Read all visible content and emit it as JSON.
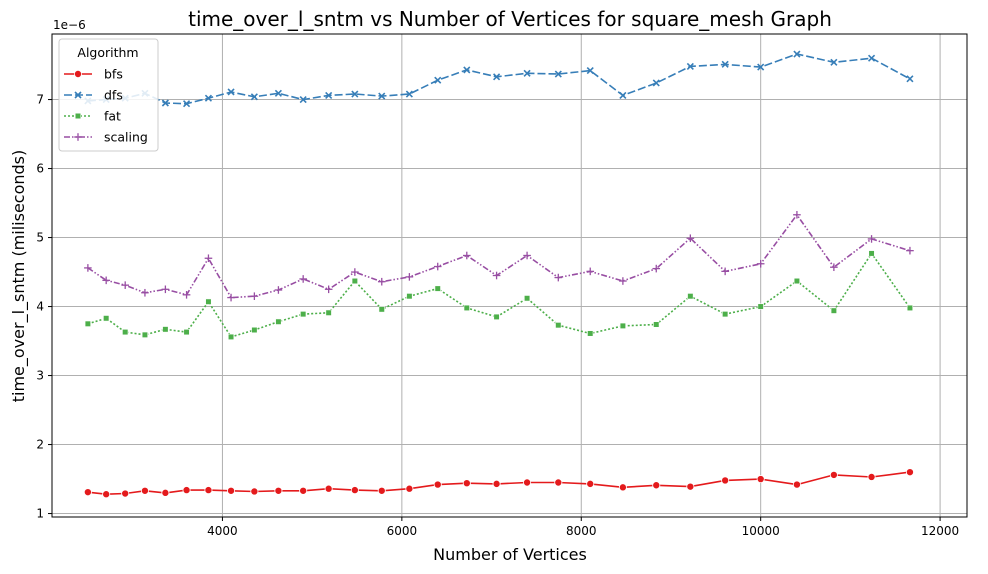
{
  "chart_data": {
    "type": "line",
    "title": "time_over_l_sntm vs Number of Vertices for square_mesh Graph",
    "xlabel": "Number of Vertices",
    "ylabel": "time_over_l_sntm (miliseconds)",
    "y_offset_label": "1e−6",
    "xlim": [
      2100,
      12300
    ],
    "ylim": [
      0.95,
      7.95
    ],
    "x_ticks": [
      4000,
      6000,
      8000,
      10000,
      12000
    ],
    "y_ticks": [
      1,
      2,
      3,
      4,
      5,
      6,
      7
    ],
    "grid": true,
    "legend": {
      "title": "Algorithm",
      "placement": "top-left"
    },
    "x": [
      2500,
      2704,
      2916,
      3136,
      3364,
      3600,
      3844,
      4096,
      4356,
      4624,
      4900,
      5184,
      5476,
      5776,
      6084,
      6400,
      6724,
      7056,
      7396,
      7744,
      8100,
      8464,
      8836,
      9216,
      9604,
      10000,
      10404,
      10816,
      11236,
      11664
    ],
    "series": [
      {
        "name": "bfs",
        "color": "#e41a1c",
        "dash": "",
        "marker": "circle",
        "values": [
          1.31,
          1.28,
          1.29,
          1.33,
          1.3,
          1.34,
          1.34,
          1.33,
          1.32,
          1.33,
          1.33,
          1.36,
          1.34,
          1.33,
          1.36,
          1.42,
          1.44,
          1.43,
          1.45,
          1.45,
          1.43,
          1.38,
          1.41,
          1.39,
          1.48,
          1.5,
          1.42,
          1.56,
          1.53,
          1.6
        ]
      },
      {
        "name": "dfs",
        "color": "#377eb8",
        "dash": "8,3",
        "marker": "x",
        "values": [
          6.98,
          7.0,
          7.02,
          7.09,
          6.95,
          6.94,
          7.02,
          7.11,
          7.04,
          7.09,
          7.0,
          7.06,
          7.08,
          7.05,
          7.08,
          7.28,
          7.43,
          7.33,
          7.38,
          7.37,
          7.42,
          7.06,
          7.24,
          7.48,
          7.51,
          7.47,
          7.66,
          7.54,
          7.6,
          7.3
        ]
      },
      {
        "name": "fat",
        "color": "#4daf4a",
        "dash": "2,2",
        "marker": "square",
        "values": [
          3.75,
          3.83,
          3.63,
          3.59,
          3.67,
          3.63,
          4.07,
          3.56,
          3.66,
          3.78,
          3.89,
          3.91,
          4.37,
          3.96,
          4.15,
          4.26,
          3.98,
          3.85,
          4.12,
          3.73,
          3.61,
          3.72,
          3.74,
          4.15,
          3.89,
          4.0,
          4.37,
          3.94,
          4.77,
          3.98
        ]
      },
      {
        "name": "scaling",
        "color": "#984ea3",
        "dash": "6,2,1.5,2,1.5,2",
        "marker": "plus",
        "values": [
          4.56,
          4.38,
          4.31,
          4.2,
          4.25,
          4.17,
          4.7,
          4.13,
          4.15,
          4.24,
          4.4,
          4.25,
          4.5,
          4.36,
          4.43,
          4.58,
          4.74,
          4.45,
          4.74,
          4.42,
          4.51,
          4.37,
          4.55,
          4.99,
          4.51,
          4.62,
          5.33,
          4.57,
          4.98,
          4.81
        ]
      }
    ]
  }
}
